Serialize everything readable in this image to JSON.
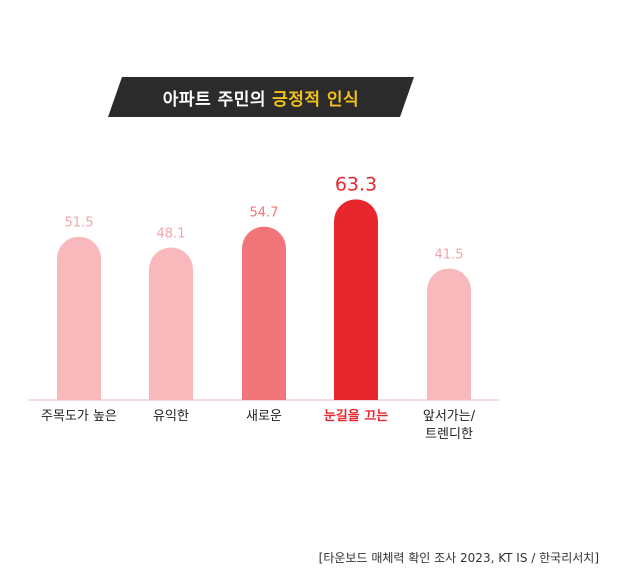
{
  "title": {
    "part1": "아파트 주민의",
    "part2": "긍정적 인식"
  },
  "chart_data": {
    "type": "bar",
    "categories": [
      "주목도가 높은",
      "유익한",
      "새로운",
      "눈길을 끄는",
      "앞서가는/\n트렌디한"
    ],
    "values": [
      51.5,
      48.1,
      54.7,
      63.3,
      41.5
    ],
    "value_labels": [
      "51.5",
      "48.1",
      "54.7",
      "63.3",
      "41.5"
    ],
    "highlight_index": 3,
    "colors": [
      "#f9b8bc",
      "#f9b8bc",
      "#f27579",
      "#e8262e",
      "#f9b8bc"
    ],
    "label_colors": [
      "#f4a5aa",
      "#f4a5aa",
      "#f27579",
      "#e8262e",
      "#f4a5aa"
    ],
    "title": "아파트 주민의 긍정적 인식",
    "xlabel": "",
    "ylabel": "",
    "grid": false,
    "legend": "none"
  },
  "colors": {
    "banner": "#2b2b2b",
    "accent": "#f2c11b",
    "baseline": "#f2b5b8"
  },
  "source": "[타운보드 매체력 확인 조사 2023, KT IS / 한국리서치]"
}
